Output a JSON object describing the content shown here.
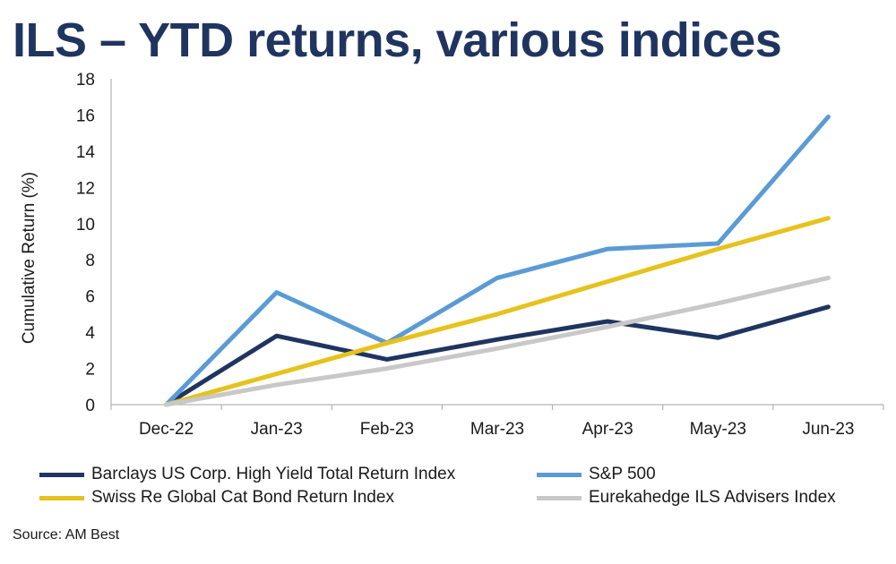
{
  "title": "ILS – YTD returns, various indices",
  "source": "Source: AM Best",
  "colors": {
    "title": "#1f3560",
    "barclays": "#1f3560",
    "sp500": "#5b9bd5",
    "swissre": "#e6c21c",
    "eurekahedge": "#c8c8c8"
  },
  "chart_data": {
    "type": "line",
    "title": "ILS – YTD returns, various indices",
    "xlabel": "",
    "ylabel": "Cumulative Return (%)",
    "categories": [
      "Dec-22",
      "Jan-23",
      "Feb-23",
      "Mar-23",
      "Apr-23",
      "May-23",
      "Jun-23"
    ],
    "ylim": [
      0,
      18
    ],
    "yticks": [
      0,
      2,
      4,
      6,
      8,
      10,
      12,
      14,
      16,
      18
    ],
    "grid": false,
    "legend_position": "bottom",
    "series": [
      {
        "name": "Barclays US Corp. High Yield Total Return Index",
        "color": "#1f3560",
        "values": [
          0,
          3.8,
          2.5,
          3.6,
          4.6,
          3.7,
          5.4
        ]
      },
      {
        "name": "S&P 500",
        "color": "#5b9bd5",
        "values": [
          0,
          6.2,
          3.4,
          7.0,
          8.6,
          8.9,
          15.9
        ]
      },
      {
        "name": "Swiss Re Global Cat Bond Return Index",
        "color": "#e6c21c",
        "values": [
          0,
          1.7,
          3.4,
          5.0,
          6.8,
          8.6,
          10.3
        ]
      },
      {
        "name": "Eurekahedge ILS Advisers Index",
        "color": "#c8c8c8",
        "values": [
          0,
          1.1,
          2.0,
          3.1,
          4.3,
          5.6,
          7.0
        ]
      }
    ]
  }
}
